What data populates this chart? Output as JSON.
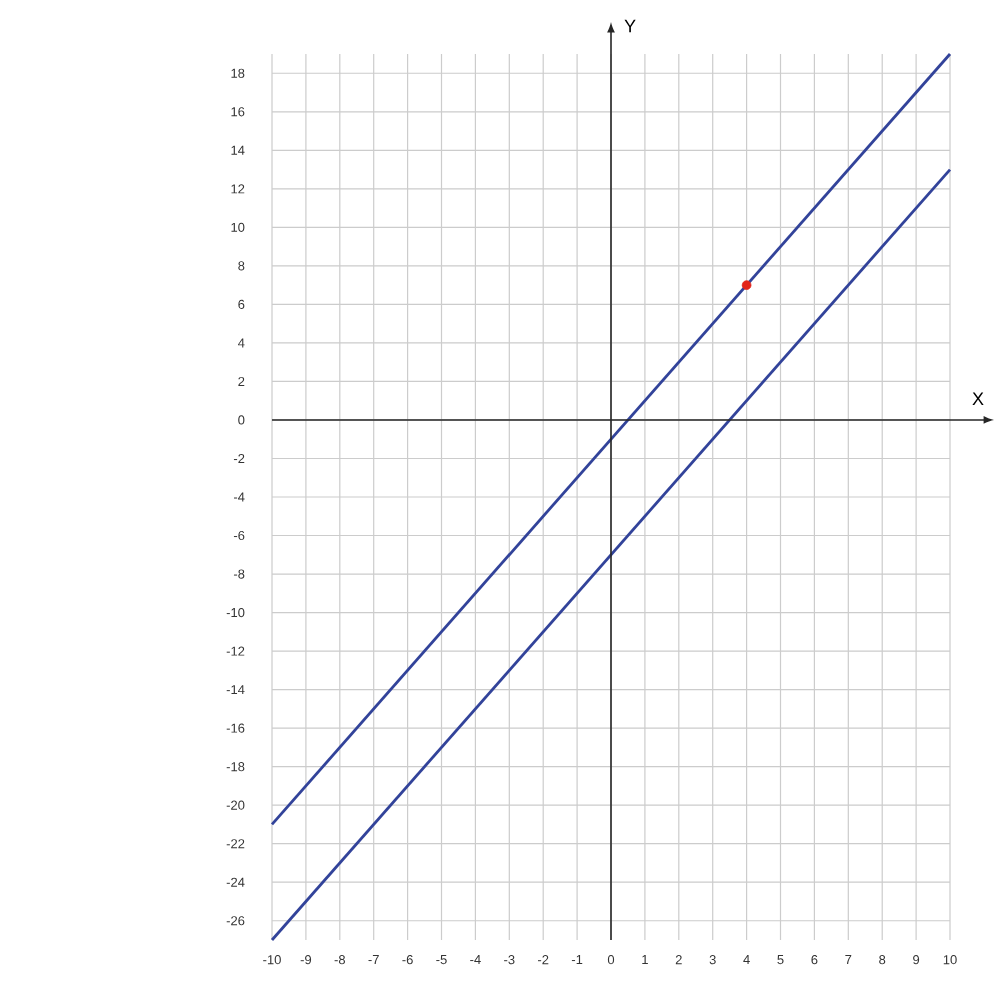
{
  "chart_data": {
    "type": "line",
    "xlabel": "X",
    "ylabel": "Y",
    "xlim": [
      -10,
      10
    ],
    "ylim": [
      -27,
      19
    ],
    "xticks": [
      -10,
      -9,
      -8,
      -7,
      -6,
      -5,
      -4,
      -3,
      -2,
      -1,
      0,
      1,
      2,
      3,
      4,
      5,
      6,
      7,
      8,
      9,
      10
    ],
    "yticks": [
      -26,
      -24,
      -22,
      -20,
      -18,
      -16,
      -14,
      -12,
      -10,
      -8,
      -6,
      -4,
      -2,
      0,
      2,
      4,
      6,
      8,
      10,
      12,
      14,
      16,
      18
    ],
    "grid": true,
    "legend": false,
    "series": [
      {
        "color": "#32439a",
        "x": [
          -10,
          10
        ],
        "values": [
          -21,
          19
        ],
        "marker": "none"
      },
      {
        "color": "#32439a",
        "x": [
          -10,
          10
        ],
        "values": [
          -27,
          13
        ],
        "marker": "none"
      },
      {
        "type": "scatter",
        "color": "#e2231a",
        "x": [
          4
        ],
        "values": [
          7
        ],
        "marker": "circle"
      }
    ]
  }
}
